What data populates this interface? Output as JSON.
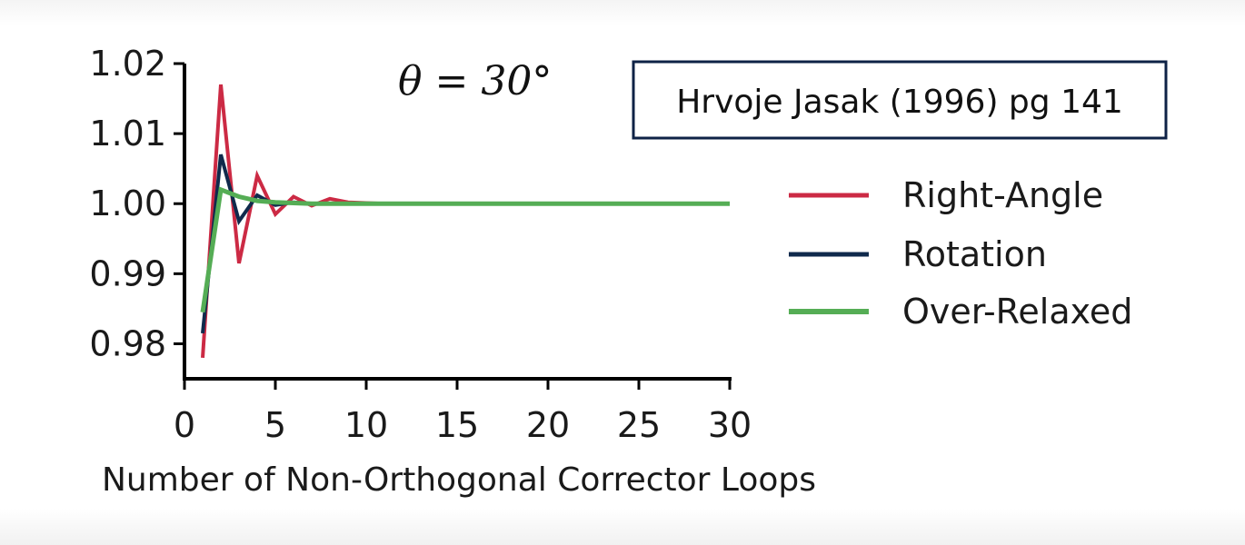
{
  "chart_data": {
    "type": "line",
    "title": "",
    "annotation": "θ = 30°",
    "source_box": "Hrvoje Jasak (1996) pg 141",
    "xlabel": "Number of Non-Orthogonal Corrector Loops",
    "ylabel": "",
    "xlim": [
      0,
      30
    ],
    "ylim": [
      0.975,
      1.02
    ],
    "xticks": [
      0,
      5,
      10,
      15,
      20,
      25,
      30
    ],
    "yticks": [
      0.98,
      0.99,
      1.0,
      1.01,
      1.02
    ],
    "xtick_labels": [
      "0",
      "5",
      "10",
      "15",
      "20",
      "25",
      "30"
    ],
    "ytick_labels": [
      "0.98",
      "0.99",
      "1.00",
      "1.01",
      "1.02"
    ],
    "grid": false,
    "legend_position": "right",
    "x": [
      1,
      2,
      3,
      4,
      5,
      6,
      7,
      8,
      9,
      10,
      11,
      12,
      13,
      14,
      15,
      16,
      17,
      18,
      19,
      20,
      21,
      22,
      23,
      24,
      25,
      26,
      27,
      28,
      29,
      30
    ],
    "series": [
      {
        "name": "Right-Angle",
        "color": "#cc2a44",
        "values": [
          0.978,
          1.017,
          0.9915,
          1.004,
          0.9985,
          1.001,
          0.9997,
          1.0007,
          1.0002,
          1.0001,
          1.0,
          1.0,
          1.0,
          1.0,
          1.0,
          1.0,
          1.0,
          1.0,
          1.0,
          1.0,
          1.0,
          1.0,
          1.0,
          1.0,
          1.0,
          1.0,
          1.0,
          1.0,
          1.0,
          1.0
        ]
      },
      {
        "name": "Rotation",
        "color": "#102a4c",
        "values": [
          0.9815,
          1.007,
          0.9975,
          1.0012,
          0.9998,
          1.0002,
          1.0,
          1.0,
          1.0,
          1.0,
          1.0,
          1.0,
          1.0,
          1.0,
          1.0,
          1.0,
          1.0,
          1.0,
          1.0,
          1.0,
          1.0,
          1.0,
          1.0,
          1.0,
          1.0,
          1.0,
          1.0,
          1.0,
          1.0,
          1.0
        ]
      },
      {
        "name": "Over-Relaxed",
        "color": "#55ad55",
        "values": [
          0.9845,
          1.002,
          1.001,
          1.0004,
          1.0002,
          1.0001,
          1.0,
          1.0,
          1.0,
          1.0,
          1.0,
          1.0,
          1.0,
          1.0,
          1.0,
          1.0,
          1.0,
          1.0,
          1.0,
          1.0,
          1.0,
          1.0,
          1.0,
          1.0,
          1.0,
          1.0,
          1.0,
          1.0,
          1.0,
          1.0
        ]
      }
    ]
  }
}
